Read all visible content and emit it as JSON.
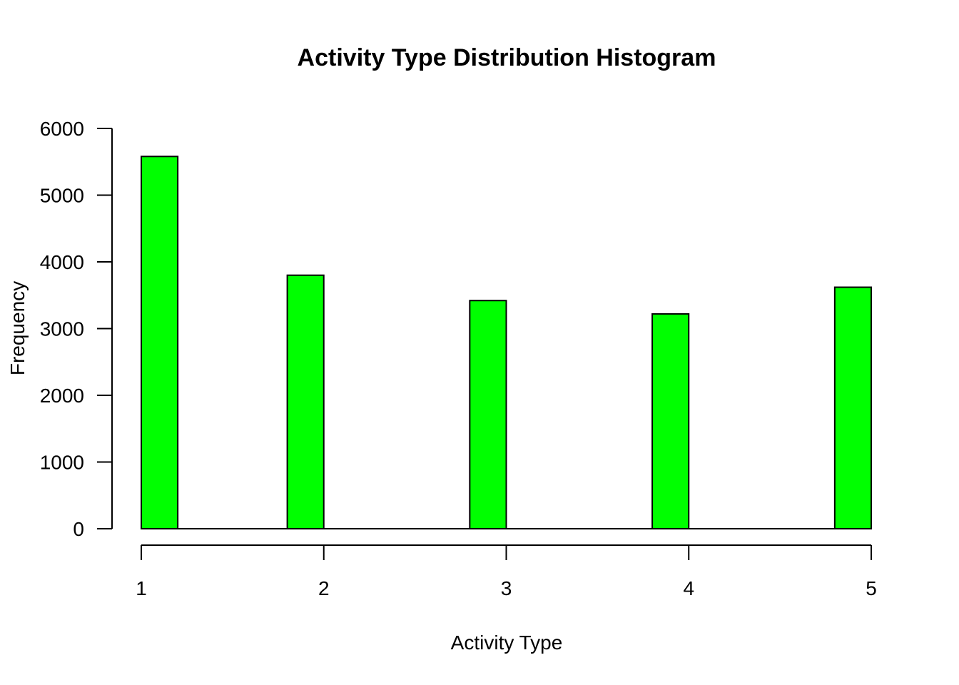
{
  "chart_data": {
    "type": "bar",
    "title": "Activity Type Distribution Histogram",
    "xlabel": "Activity Type",
    "ylabel": "Frequency",
    "bar_color": "#00ff00",
    "bins": [
      {
        "x_start": 1.0,
        "x_end": 1.2,
        "value": 5580
      },
      {
        "x_start": 1.8,
        "x_end": 2.0,
        "value": 3800
      },
      {
        "x_start": 2.8,
        "x_end": 3.0,
        "value": 3420
      },
      {
        "x_start": 3.8,
        "x_end": 4.0,
        "value": 3220
      },
      {
        "x_start": 4.8,
        "x_end": 5.0,
        "value": 3620
      }
    ],
    "xlim": [
      1,
      5
    ],
    "ylim": [
      0,
      6000
    ],
    "x_ticks": [
      1,
      2,
      3,
      4,
      5
    ],
    "x_tick_labels": [
      "1",
      "2",
      "3",
      "4",
      "5"
    ],
    "y_ticks": [
      0,
      1000,
      2000,
      3000,
      4000,
      5000,
      6000
    ],
    "y_tick_labels": [
      "0",
      "1000",
      "2000",
      "3000",
      "4000",
      "5000",
      "6000"
    ],
    "grid": false,
    "legend": "none"
  }
}
